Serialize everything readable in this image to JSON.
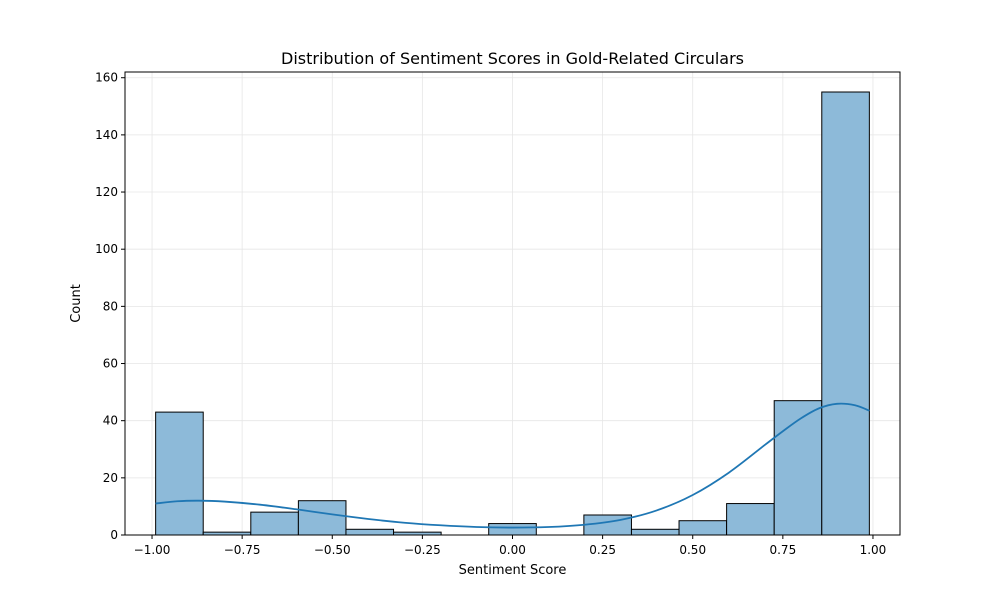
{
  "chart_data": {
    "type": "bar",
    "title": "Distribution of Sentiment Scores in Gold-Related Circulars",
    "xlabel": "Sentiment Score",
    "ylabel": "Count",
    "xlim": [
      -1.075,
      1.075
    ],
    "ylim": [
      0,
      162
    ],
    "x_ticks": [
      -1.0,
      -0.75,
      -0.5,
      -0.25,
      0.0,
      0.25,
      0.5,
      0.75,
      1.0
    ],
    "x_tick_labels": [
      "−1.00",
      "−0.75",
      "−0.50",
      "−0.25",
      "0.00",
      "0.25",
      "0.50",
      "0.75",
      "1.00"
    ],
    "y_ticks": [
      0,
      20,
      40,
      60,
      80,
      100,
      120,
      140,
      160
    ],
    "y_tick_labels": [
      "0",
      "20",
      "40",
      "60",
      "80",
      "100",
      "120",
      "140",
      "160"
    ],
    "grid": true,
    "bins": [
      {
        "start": -0.99,
        "end": -0.858,
        "count": 43
      },
      {
        "start": -0.858,
        "end": -0.726,
        "count": 1
      },
      {
        "start": -0.726,
        "end": -0.594,
        "count": 8
      },
      {
        "start": -0.594,
        "end": -0.462,
        "count": 12
      },
      {
        "start": -0.462,
        "end": -0.33,
        "count": 2
      },
      {
        "start": -0.33,
        "end": -0.198,
        "count": 1
      },
      {
        "start": -0.198,
        "end": -0.066,
        "count": 0
      },
      {
        "start": -0.066,
        "end": 0.066,
        "count": 4
      },
      {
        "start": 0.066,
        "end": 0.198,
        "count": 0
      },
      {
        "start": 0.198,
        "end": 0.33,
        "count": 7
      },
      {
        "start": 0.33,
        "end": 0.462,
        "count": 2
      },
      {
        "start": 0.462,
        "end": 0.594,
        "count": 5
      },
      {
        "start": 0.594,
        "end": 0.726,
        "count": 11
      },
      {
        "start": 0.726,
        "end": 0.858,
        "count": 47
      },
      {
        "start": 0.858,
        "end": 0.99,
        "count": 155
      }
    ],
    "kde": {
      "x": [
        -0.99,
        -0.93,
        -0.87,
        -0.8,
        -0.7,
        -0.6,
        -0.5,
        -0.4,
        -0.3,
        -0.2,
        -0.1,
        0.0,
        0.1,
        0.2,
        0.3,
        0.4,
        0.5,
        0.6,
        0.7,
        0.75,
        0.8,
        0.85,
        0.9,
        0.95,
        0.99
      ],
      "y": [
        11,
        11.8,
        12,
        11.7,
        10.6,
        9.0,
        7.2,
        5.6,
        4.3,
        3.4,
        2.8,
        2.6,
        2.8,
        3.6,
        5.3,
        8.6,
        14.0,
        21.8,
        31.5,
        36.3,
        40.8,
        44.3,
        45.9,
        45.4,
        43.5
      ]
    },
    "colors": {
      "bar_fill": "#8dbad9",
      "bar_edge": "#000000",
      "kde_line": "#1f77b4",
      "grid": "#e6e6e6"
    }
  }
}
